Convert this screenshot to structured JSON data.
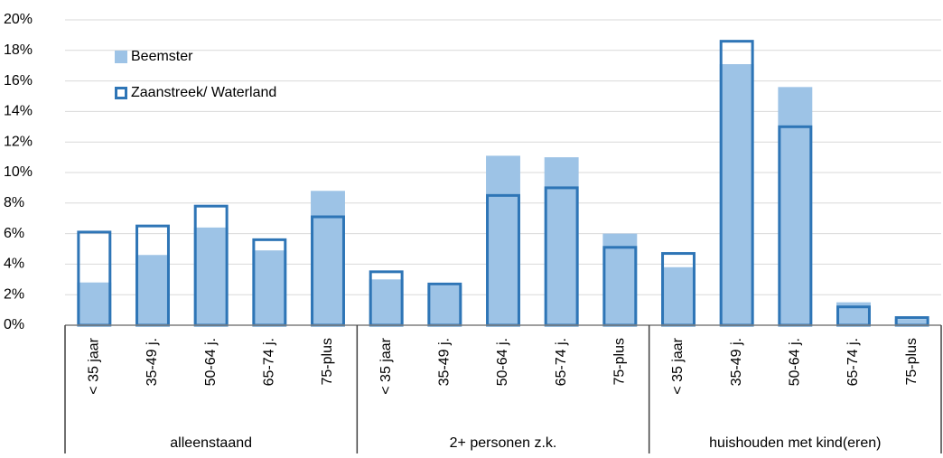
{
  "chart_data": {
    "type": "bar",
    "groups": [
      {
        "name": "alleenstaand",
        "categories": [
          "< 35 jaar",
          "35-49 j.",
          "50-64 j.",
          "65-74 j.",
          "75-plus"
        ]
      },
      {
        "name": "2+ personen z.k.",
        "categories": [
          "< 35 jaar",
          "35-49 j.",
          "50-64 j.",
          "65-74 j.",
          "75-plus"
        ]
      },
      {
        "name": "huishouden met kind(eren)",
        "categories": [
          "< 35 jaar",
          "35-49 j.",
          "50-64 j.",
          "65-74 j.",
          "75-plus"
        ]
      }
    ],
    "series": [
      {
        "name": "Beemster",
        "color": "#9dc3e6",
        "style": "filled",
        "values": [
          2.8,
          4.6,
          6.4,
          4.9,
          8.8,
          3.0,
          2.6,
          11.1,
          11.0,
          6.0,
          3.8,
          17.1,
          15.6,
          1.5,
          0.4
        ]
      },
      {
        "name": "Zaanstreek/ Waterland",
        "color": "#2e75b6",
        "style": "outline",
        "values": [
          6.1,
          6.5,
          7.8,
          5.6,
          7.1,
          3.5,
          2.7,
          8.5,
          9.0,
          5.1,
          4.7,
          18.6,
          13.0,
          1.2,
          0.5
        ]
      }
    ],
    "ylim": [
      0,
      20
    ],
    "yticks": [
      {
        "value": 0,
        "label": "0%"
      },
      {
        "value": 2,
        "label": "2%"
      },
      {
        "value": 4,
        "label": "4%"
      },
      {
        "value": 6,
        "label": "6%"
      },
      {
        "value": 8,
        "label": "8%"
      },
      {
        "value": 10,
        "label": "10%"
      },
      {
        "value": 12,
        "label": "12%"
      },
      {
        "value": 14,
        "label": "14%"
      },
      {
        "value": 16,
        "label": "16%"
      },
      {
        "value": 18,
        "label": "18%"
      },
      {
        "value": 20,
        "label": "20%"
      }
    ],
    "grid": true,
    "legend": "upper-left"
  }
}
